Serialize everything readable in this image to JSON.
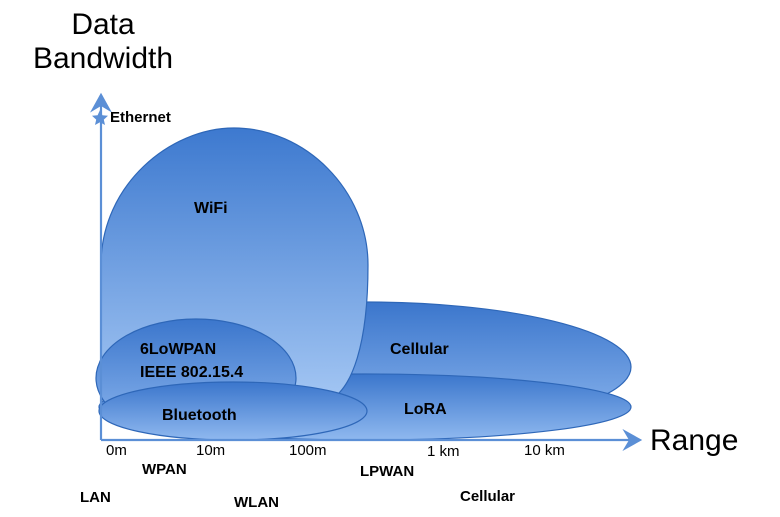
{
  "axes": {
    "y_title_line1": "Data",
    "y_title_line2": "Bandwidth",
    "x_title": "Range",
    "y_top_marker": "Ethernet"
  },
  "technologies": {
    "wifi": "WiFi",
    "lowpan_line1": "6LoWPAN",
    "lowpan_line2": "IEEE 802.15.4",
    "bluetooth": "Bluetooth",
    "cellular": "Cellular",
    "lora": "LoRA"
  },
  "range_ticks": [
    "0m",
    "10m",
    "100m",
    "1 km",
    "10 km"
  ],
  "network_classes": {
    "wpan": "WPAN",
    "lan": "LAN",
    "wlan": "WLAN",
    "lpwan": "LPWAN",
    "cellular": "Cellular"
  },
  "colors": {
    "axis": "#5b8fd6",
    "ellipse_dark": "#3d79cf",
    "ellipse_light": "#9ec2f2"
  }
}
